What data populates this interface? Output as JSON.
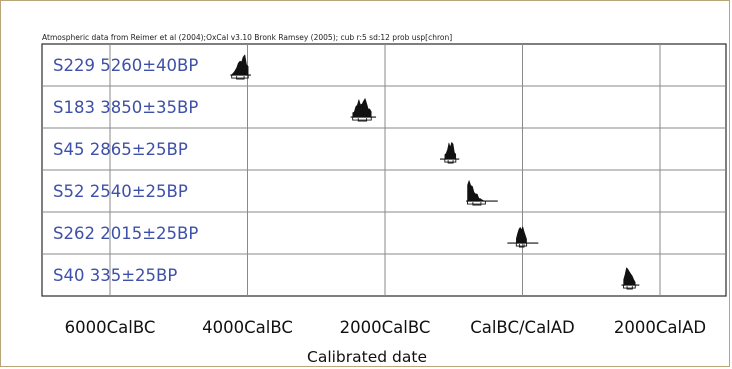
{
  "chart_data": {
    "type": "calibrated-date-plot",
    "title": "Atmospheric data from Reimer et al (2004);OxCal v3.10 Bronk Ramsey (2005); cub r:5 sd:12 prob usp[chron]",
    "xlabel": "Calibrated date",
    "x_axis_units": "calendar year (negative = BC)",
    "xlim": [
      -6500,
      2800
    ],
    "ticks": [
      {
        "value": -6000,
        "label": "6000CalBC"
      },
      {
        "value": -4000,
        "label": "4000CalBC"
      },
      {
        "value": -2000,
        "label": "2000CalBC"
      },
      {
        "value": 0,
        "label": "CalBC/CalAD"
      },
      {
        "value": 2000,
        "label": "2000CalAD"
      }
    ],
    "grid": true,
    "series": [
      {
        "sample": "S229",
        "bp": "5260±40BP",
        "label": "S229  5260±40BP",
        "range": [
          -4250,
          -3950
        ],
        "peak": -4060,
        "bars": [
          -4230,
          -3990
        ]
      },
      {
        "sample": "S183",
        "bp": "3850±35BP",
        "label": "S183  3850±35BP",
        "range": [
          -2500,
          -2130
        ],
        "peak": -2330,
        "bars": [
          -2470,
          -2200
        ]
      },
      {
        "sample": "S45",
        "bp": "2865±25BP",
        "label": "S45  2865±25BP",
        "range": [
          -1200,
          -920
        ],
        "peak": -1050,
        "bars": [
          -1130,
          -970
        ]
      },
      {
        "sample": "S52",
        "bp": "2540±25BP",
        "label": "S52  2540±25BP",
        "range": [
          -820,
          -360
        ],
        "peak": -770,
        "bars": [
          -800,
          -540
        ]
      },
      {
        "sample": "S262",
        "bp": "2015±25BP",
        "label": "S262  2015±25BP",
        "range": [
          -220,
          230
        ],
        "peak": -20,
        "bars": [
          -90,
          60
        ]
      },
      {
        "sample": "S40",
        "bp": "335±25BP",
        "label": "S40  335±25BP",
        "range": [
          1440,
          1700
        ],
        "peak": 1540,
        "bars": [
          1470,
          1640
        ]
      }
    ]
  }
}
